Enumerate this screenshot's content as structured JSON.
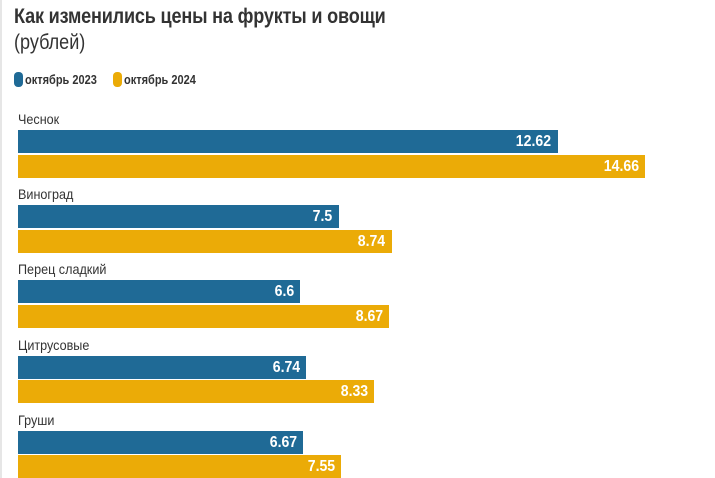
{
  "chart_data": {
    "type": "bar",
    "orientation": "horizontal",
    "title": "Как изменились цены на фрукты и овощи",
    "subtitle": "(рублей)",
    "xlabel": "",
    "ylabel": "",
    "xlim": [
      0,
      15.5
    ],
    "grid": false,
    "legend_position": "top-left",
    "categories": [
      "Чеснок",
      "Виноград",
      "Перец сладкий",
      "Цитрусовые",
      "Груши"
    ],
    "series": [
      {
        "name": "октябрь 2023",
        "color": "#1f6a96",
        "values": [
          12.62,
          7.5,
          6.6,
          6.74,
          6.67
        ]
      },
      {
        "name": "октябрь 2024",
        "color": "#ebab07",
        "values": [
          14.66,
          8.74,
          8.67,
          8.33,
          7.55
        ]
      }
    ],
    "value_labels": [
      [
        "12.62",
        "7.5",
        "6.6",
        "6.74",
        "6.67"
      ],
      [
        "14.66",
        "8.74",
        "8.67",
        "8.33",
        "7.55"
      ]
    ]
  }
}
